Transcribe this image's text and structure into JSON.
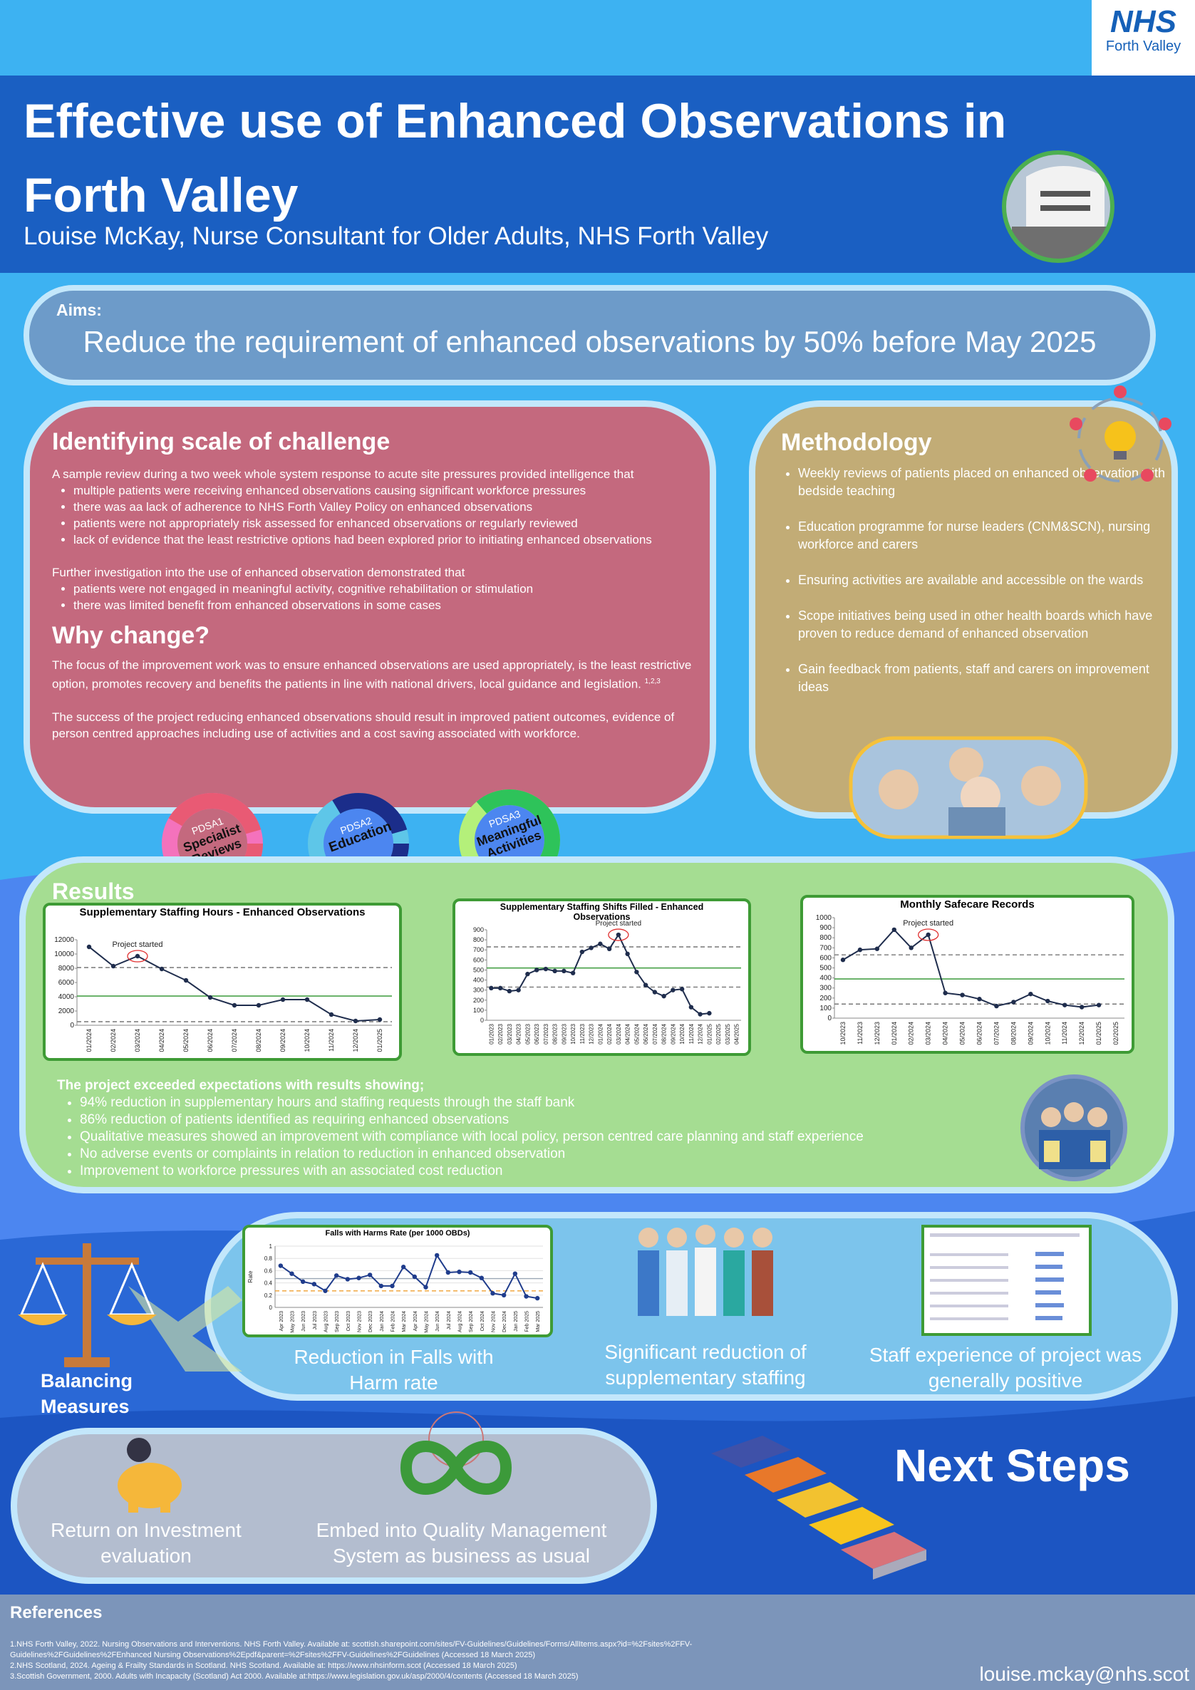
{
  "header": {
    "logo_top": "NHS",
    "logo_bottom": "Forth Valley",
    "title": "Effective use of Enhanced Observations in Forth Valley",
    "author": "Louise McKay, Nurse Consultant for Older Adults, NHS Forth Valley"
  },
  "aims": {
    "label": "Aims:",
    "text": "Reduce the requirement of enhanced observations by 50% before May 2025"
  },
  "challenge": {
    "title": "Identifying scale of challenge",
    "intro": "A sample review during a two week whole system response to acute site pressures provided intelligence that",
    "bullets": [
      "multiple patients were receiving enhanced observations causing significant workforce pressures",
      "there was aa lack of adherence to NHS Forth Valley Policy on enhanced observations",
      "patients were not appropriately risk assessed for enhanced observations or regularly reviewed",
      "lack of evidence that the least restrictive options had been explored prior to initiating enhanced observations"
    ],
    "further": "Further investigation into the use of enhanced observation demonstrated that",
    "further_bullets": [
      "patients were not engaged in meaningful activity, cognitive rehabilitation or stimulation",
      "there was limited benefit from enhanced observations in some cases"
    ]
  },
  "why_change": {
    "title": "Why change?",
    "p1": "The focus of the improvement work was to ensure enhanced observations are used appropriately, is the least restrictive option, promotes recovery and benefits the patients in line with national drivers, local guidance and legislation.",
    "p1_sup": "1,2,3",
    "p2": "The success of the project reducing enhanced observations should result in improved patient outcomes, evidence of person centred approaches including use of activities and a cost saving associated with workforce."
  },
  "methodology": {
    "title": "Methodology",
    "bullets": [
      "Weekly reviews of patients placed on enhanced observation with bedside teaching",
      "Education programme for nurse leaders (CNM&SCN), nursing workforce and carers",
      "Ensuring activities are available and accessible on the wards",
      "Scope initiatives being used in other health boards which have proven to reduce demand of enhanced observation",
      "Gain feedback from patients, staff and carers on improvement ideas"
    ]
  },
  "pdsa": [
    {
      "label": "PDSA1",
      "name": "Specialist Reviews"
    },
    {
      "label": "PDSA2",
      "name": "Education"
    },
    {
      "label": "PDSA3",
      "name": "Meaningful Activities"
    }
  ],
  "results": {
    "title": "Results",
    "summary": "The project exceeded expectations with results showing;",
    "bullets": [
      "94% reduction in supplementary hours and staffing requests through the staff bank",
      "86% reduction of patients identified as requiring enhanced observations",
      "Qualitative measures showed an improvement with compliance with local policy, person centred care planning and staff experience",
      "No adverse events or complaints in relation to reduction in enhanced observation",
      "Improvement to workforce pressures with an associated cost reduction"
    ]
  },
  "chart_data": [
    {
      "type": "line",
      "title": "Supplementary Staffing Hours - Enhanced Observations",
      "annotation": "Project started",
      "categories": [
        "01/2024",
        "02/2024",
        "03/2024",
        "04/2024",
        "05/2024",
        "06/2024",
        "07/2024",
        "08/2024",
        "09/2024",
        "10/2024",
        "11/2024",
        "12/2024",
        "01/2025"
      ],
      "values": [
        11000,
        8300,
        9700,
        7900,
        6300,
        3900,
        2800,
        2800,
        3600,
        3600,
        1500,
        600,
        800
      ],
      "color": "#1f2d4d",
      "ylim": [
        0,
        12000
      ],
      "yticks": [
        0,
        2000,
        4000,
        6000,
        8000,
        10000,
        12000
      ],
      "reference_lines": [
        {
          "value": 8100,
          "color": "#777777",
          "style": "dashed"
        },
        {
          "value": 4100,
          "color": "#3a9a3a",
          "style": "solid"
        },
        {
          "value": 500,
          "color": "#777777",
          "style": "dashed"
        }
      ]
    },
    {
      "type": "line",
      "title": "Supplementary Staffing Shifts Filled - Enhanced Observations",
      "annotation": "Project started",
      "categories": [
        "01/2023",
        "02/2023",
        "03/2023",
        "04/2023",
        "05/2023",
        "06/2023",
        "07/2023",
        "08/2023",
        "09/2023",
        "10/2023",
        "11/2023",
        "12/2023",
        "01/2024",
        "02/2024",
        "03/2024",
        "04/2024",
        "05/2024",
        "06/2024",
        "07/2024",
        "08/2024",
        "09/2024",
        "10/2024",
        "11/2024",
        "12/2024",
        "01/2025",
        "02/2025",
        "03/2025",
        "04/2025"
      ],
      "values": [
        320,
        320,
        290,
        300,
        460,
        500,
        510,
        490,
        490,
        470,
        680,
        720,
        760,
        710,
        850,
        660,
        480,
        350,
        280,
        240,
        300,
        310,
        130,
        60,
        70,
        null,
        null,
        null
      ],
      "color": "#1f2d4d",
      "ylim": [
        0,
        900
      ],
      "yticks": [
        0,
        100,
        200,
        300,
        400,
        500,
        600,
        700,
        800,
        900
      ],
      "reference_lines": [
        {
          "value": 730,
          "color": "#777777",
          "style": "dashed"
        },
        {
          "value": 520,
          "color": "#3a9a3a",
          "style": "solid"
        },
        {
          "value": 330,
          "color": "#777777",
          "style": "dashed"
        }
      ]
    },
    {
      "type": "line",
      "title": "Monthly Safecare Records",
      "annotation": "Project started",
      "categories": [
        "10/2023",
        "11/2023",
        "12/2023",
        "01/2024",
        "02/2024",
        "03/2024",
        "04/2024",
        "05/2024",
        "06/2024",
        "07/2024",
        "08/2024",
        "09/2024",
        "10/2024",
        "11/2024",
        "12/2024",
        "01/2025",
        "02/2025"
      ],
      "values": [
        580,
        680,
        690,
        880,
        700,
        830,
        250,
        230,
        190,
        120,
        160,
        240,
        170,
        130,
        110,
        130,
        null
      ],
      "color": "#1f2d4d",
      "ylim": [
        0,
        1000
      ],
      "yticks": [
        0,
        100,
        200,
        300,
        400,
        500,
        600,
        700,
        800,
        900,
        1000
      ],
      "reference_lines": [
        {
          "value": 630,
          "color": "#777777",
          "style": "dashed"
        },
        {
          "value": 390,
          "color": "#3a9a3a",
          "style": "solid"
        },
        {
          "value": 140,
          "color": "#777777",
          "style": "dashed"
        }
      ]
    },
    {
      "type": "line",
      "title": "Falls with Harms Rate (per 1000 OBDs)",
      "ylabel": "Rate",
      "categories": [
        "Apr 2023",
        "May 2023",
        "Jun 2023",
        "Jul 2023",
        "Aug 2023",
        "Sep 2023",
        "Oct 2023",
        "Nov 2023",
        "Dec 2023",
        "Jan 2024",
        "Feb 2024",
        "Mar 2024",
        "Apr 2024",
        "May 2024",
        "Jun 2024",
        "Jul 2024",
        "Aug 2024",
        "Sep 2024",
        "Oct 2024",
        "Nov 2024",
        "Dec 2024",
        "Jan 2025",
        "Feb 2025",
        "Mar 2025"
      ],
      "values": [
        0.68,
        0.55,
        0.42,
        0.38,
        0.27,
        0.52,
        0.46,
        0.48,
        0.53,
        0.35,
        0.35,
        0.66,
        0.5,
        0.33,
        0.85,
        0.57,
        0.58,
        0.57,
        0.48,
        0.23,
        0.2,
        0.55,
        0.18,
        0.15
      ],
      "color": "#1f3c8c",
      "ylim": [
        0,
        1
      ],
      "yticks": [
        0,
        0.2,
        0.4,
        0.6,
        0.8,
        1
      ],
      "grid": true,
      "reference_lines": [
        {
          "value": 0.47,
          "color": "#9aa7b5",
          "style": "solid"
        },
        {
          "value": 0.27,
          "color": "#f0a030",
          "style": "dashed"
        }
      ]
    }
  ],
  "balancing": {
    "title": "Balancing Measures",
    "items": [
      "Reduction in Falls with Harm rate",
      "Significant reduction of supplementary staffing",
      "Staff experience of project was generally positive"
    ]
  },
  "next_steps": {
    "title": "Next Steps",
    "items": [
      "Return on Investment evaluation",
      "Embed into Quality Management System as business as usual"
    ]
  },
  "references": {
    "title": "References",
    "items": [
      "1.NHS Forth Valley, 2022. Nursing Observations and Interventions. NHS Forth Valley. Available at: scottish.sharepoint.com/sites/FV-Guidelines/Guidelines/Forms/AllItems.aspx?id=%2Fsites%2FFV-Guidelines%2FGuidelines%2FEnhanced Nursing Observations%2Epdf&parent=%2Fsites%2FFV-Guidelines%2FGuidelines (Accessed 18 March 2025)",
      "2.NHS Scotland, 2024. Ageing & Frailty Standards in Scotland. NHS Scotland. Available at: https://www.nhsinform.scot (Accessed 18 March 2025)",
      "3.Scottish Government, 2000. Adults with Incapacity (Scotland) Act 2000. Available at:https://www.legislation.gov.uk/asp/2000/4/contents (Accessed 18 March 2025)"
    ],
    "email": "louise.mckay@nhs.scot"
  }
}
